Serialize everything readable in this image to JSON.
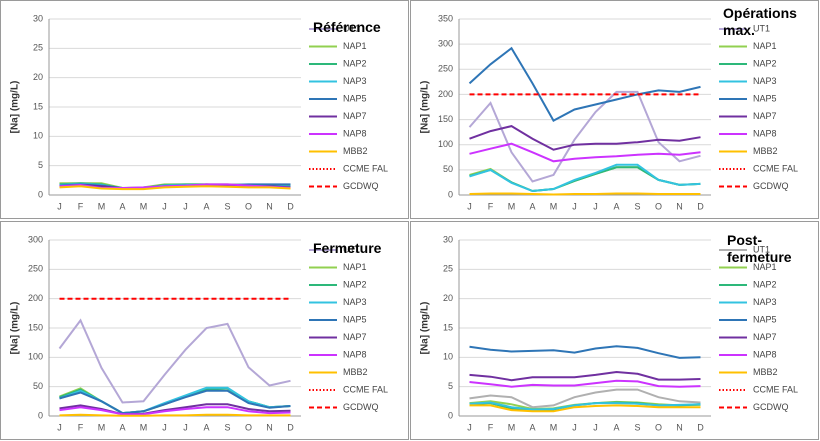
{
  "chart_data": [
    {
      "type": "line",
      "title": "Référence",
      "y_label": "[Na] (mg/L)",
      "categories": [
        "J",
        "F",
        "M",
        "A",
        "M",
        "J",
        "J",
        "A",
        "S",
        "O",
        "N",
        "D"
      ],
      "ylim": [
        0,
        30
      ],
      "yticks": [
        0,
        5,
        10,
        15,
        20,
        25,
        30
      ],
      "grid": true,
      "series": [
        {
          "name": "UT1",
          "color": "#b4a7d6",
          "style": "solid",
          "values": [
            1.5,
            1.8,
            1.5,
            1.2,
            1.2,
            1.5,
            1.6,
            1.8,
            1.6,
            1.5,
            1.5,
            1.3
          ]
        },
        {
          "name": "NAP1",
          "color": "#92d050",
          "style": "solid",
          "values": [
            2,
            2,
            2,
            1.2,
            1.3,
            1.8,
            1.8,
            1.8,
            1.8,
            1.7,
            1.6,
            1.5
          ]
        },
        {
          "name": "NAP2",
          "color": "#2db87a",
          "style": "solid",
          "values": [
            1.8,
            2,
            1.8,
            1.1,
            1.2,
            1.7,
            1.8,
            1.8,
            1.7,
            1.6,
            1.6,
            1.5
          ]
        },
        {
          "name": "NAP3",
          "color": "#33c3e0",
          "style": "solid",
          "values": [
            1.7,
            1.9,
            1.7,
            1.1,
            1.1,
            1.6,
            1.7,
            1.7,
            1.6,
            1.6,
            1.5,
            1.4
          ]
        },
        {
          "name": "NAP5",
          "color": "#2e75b6",
          "style": "solid",
          "values": [
            1.6,
            1.8,
            1.6,
            1.2,
            1.2,
            1.5,
            1.6,
            1.7,
            1.7,
            1.8,
            1.8,
            1.8
          ]
        },
        {
          "name": "NAP7",
          "color": "#7030a0",
          "style": "solid",
          "values": [
            1.4,
            1.7,
            1.5,
            1.1,
            1.1,
            1.4,
            1.5,
            1.6,
            1.6,
            1.5,
            1.5,
            1.3
          ]
        },
        {
          "name": "NAP8",
          "color": "#cc33ff",
          "style": "solid",
          "values": [
            1.5,
            1.7,
            1.2,
            1.2,
            1.3,
            1.5,
            1.6,
            1.8,
            1.8,
            1.6,
            1.4,
            1.2
          ]
        },
        {
          "name": "MBB2",
          "color": "#ffc000",
          "style": "solid",
          "values": [
            1.3,
            1.5,
            1.1,
            1.0,
            1.0,
            1.3,
            1.4,
            1.5,
            1.4,
            1.3,
            1.3,
            1.1
          ]
        },
        {
          "name": "CCME FAL",
          "color": "#ff0000",
          "style": "dotted",
          "values": [
            null,
            null,
            null,
            null,
            null,
            null,
            null,
            null,
            null,
            null,
            null,
            null
          ]
        },
        {
          "name": "GCDWQ",
          "color": "#ff0000",
          "style": "dashed",
          "values": [
            null,
            null,
            null,
            null,
            null,
            null,
            null,
            null,
            null,
            null,
            null,
            null
          ]
        }
      ]
    },
    {
      "type": "line",
      "title": "Opérations max.",
      "y_label": "[Na] (mg/L)",
      "categories": [
        "J",
        "F",
        "M",
        "A",
        "M",
        "J",
        "J",
        "A",
        "S",
        "O",
        "N",
        "D"
      ],
      "ylim": [
        0,
        350
      ],
      "yticks": [
        0,
        50,
        100,
        150,
        200,
        250,
        300,
        350
      ],
      "grid": true,
      "series": [
        {
          "name": "UT1",
          "color": "#b4a7d6",
          "style": "solid",
          "values": [
            135,
            183,
            85,
            27,
            40,
            110,
            165,
            205,
            205,
            105,
            67,
            78
          ]
        },
        {
          "name": "NAP1",
          "color": "#92d050",
          "style": "solid",
          "values": [
            40,
            52,
            25,
            8,
            12,
            28,
            42,
            55,
            55,
            30,
            20,
            22
          ]
        },
        {
          "name": "NAP2",
          "color": "#2db87a",
          "style": "solid",
          "values": [
            38,
            50,
            25,
            8,
            12,
            28,
            42,
            55,
            55,
            30,
            20,
            22
          ]
        },
        {
          "name": "NAP3",
          "color": "#33c3e0",
          "style": "solid",
          "values": [
            37,
            50,
            24,
            8,
            12,
            30,
            44,
            60,
            60,
            30,
            20,
            22
          ]
        },
        {
          "name": "NAP5",
          "color": "#2e75b6",
          "style": "solid",
          "values": [
            222,
            260,
            292,
            222,
            148,
            170,
            180,
            190,
            200,
            208,
            205,
            215
          ]
        },
        {
          "name": "NAP7",
          "color": "#7030a0",
          "style": "solid",
          "values": [
            112,
            127,
            137,
            112,
            90,
            100,
            102,
            102,
            105,
            110,
            108,
            115
          ]
        },
        {
          "name": "NAP8",
          "color": "#cc33ff",
          "style": "solid",
          "values": [
            82,
            92,
            102,
            85,
            67,
            72,
            75,
            77,
            80,
            82,
            80,
            85
          ]
        },
        {
          "name": "MBB2",
          "color": "#ffc000",
          "style": "solid",
          "values": [
            2,
            3,
            3,
            2,
            1,
            2,
            2,
            3,
            3,
            2,
            2,
            2
          ]
        },
        {
          "name": "CCME FAL",
          "color": "#ff0000",
          "style": "dotted",
          "values": [
            null,
            null,
            null,
            null,
            null,
            null,
            null,
            null,
            null,
            null,
            null,
            null
          ]
        },
        {
          "name": "GCDWQ",
          "color": "#ff0000",
          "style": "dashed",
          "values": [
            200,
            200,
            200,
            200,
            200,
            200,
            200,
            200,
            200,
            200,
            200,
            200
          ]
        }
      ]
    },
    {
      "type": "line",
      "title": "Fermeture",
      "y_label": "[Na] (mg/L)",
      "categories": [
        "J",
        "F",
        "M",
        "A",
        "M",
        "J",
        "J",
        "A",
        "S",
        "O",
        "N",
        "D"
      ],
      "ylim": [
        0,
        300
      ],
      "yticks": [
        0,
        50,
        100,
        150,
        200,
        250,
        300
      ],
      "grid": true,
      "series": [
        {
          "name": "UT1",
          "color": "#b4a7d6",
          "style": "solid",
          "values": [
            115,
            163,
            82,
            23,
            25,
            70,
            113,
            150,
            157,
            83,
            52,
            60
          ]
        },
        {
          "name": "NAP1",
          "color": "#92d050",
          "style": "solid",
          "values": [
            33,
            47,
            25,
            5,
            8,
            20,
            33,
            45,
            47,
            25,
            15,
            17
          ]
        },
        {
          "name": "NAP2",
          "color": "#2db87a",
          "style": "solid",
          "values": [
            32,
            45,
            25,
            5,
            8,
            20,
            33,
            45,
            47,
            25,
            15,
            17
          ]
        },
        {
          "name": "NAP3",
          "color": "#33c3e0",
          "style": "solid",
          "values": [
            30,
            43,
            25,
            5,
            8,
            22,
            35,
            48,
            48,
            25,
            15,
            17
          ]
        },
        {
          "name": "NAP5",
          "color": "#2e75b6",
          "style": "solid",
          "values": [
            30,
            40,
            25,
            5,
            8,
            20,
            32,
            43,
            43,
            22,
            14,
            17
          ]
        },
        {
          "name": "NAP7",
          "color": "#7030a0",
          "style": "solid",
          "values": [
            13,
            18,
            12,
            3,
            4,
            10,
            15,
            20,
            20,
            12,
            8,
            9
          ]
        },
        {
          "name": "NAP8",
          "color": "#cc33ff",
          "style": "solid",
          "values": [
            10,
            15,
            10,
            3,
            3,
            8,
            12,
            15,
            15,
            8,
            5,
            6
          ]
        },
        {
          "name": "MBB2",
          "color": "#ffc000",
          "style": "solid",
          "values": [
            1,
            2,
            1,
            0.5,
            0.5,
            1,
            1,
            2,
            2,
            1,
            1,
            1
          ]
        },
        {
          "name": "CCME FAL",
          "color": "#ff0000",
          "style": "dotted",
          "values": [
            null,
            null,
            null,
            null,
            null,
            null,
            null,
            null,
            null,
            null,
            null,
            null
          ]
        },
        {
          "name": "GCDWQ",
          "color": "#ff0000",
          "style": "dashed",
          "values": [
            200,
            200,
            200,
            200,
            200,
            200,
            200,
            200,
            200,
            200,
            200,
            200
          ]
        }
      ]
    },
    {
      "type": "line",
      "title": "Post-fermeture",
      "y_label": "[Na] (mg/L)",
      "categories": [
        "J",
        "F",
        "M",
        "A",
        "M",
        "J",
        "J",
        "A",
        "S",
        "O",
        "N",
        "D"
      ],
      "ylim": [
        0,
        30
      ],
      "yticks": [
        0,
        5,
        10,
        15,
        20,
        25,
        30
      ],
      "grid": true,
      "series": [
        {
          "name": "UT1",
          "color": "#b0b0b0",
          "style": "solid",
          "values": [
            3.0,
            3.5,
            3.2,
            1.5,
            1.8,
            3.2,
            4,
            4.5,
            4.5,
            3.2,
            2.5,
            2.3
          ]
        },
        {
          "name": "NAP1",
          "color": "#92d050",
          "style": "solid",
          "values": [
            2.2,
            2.5,
            2,
            1.2,
            1.3,
            1.9,
            2.2,
            2.4,
            2.3,
            2.0,
            1.8,
            1.9
          ]
        },
        {
          "name": "NAP2",
          "color": "#2db87a",
          "style": "solid",
          "values": [
            2.0,
            2.2,
            1.3,
            1.0,
            1.1,
            1.8,
            2.2,
            2.3,
            2.2,
            1.8,
            1.8,
            2.0
          ]
        },
        {
          "name": "NAP3",
          "color": "#33c3e0",
          "style": "solid",
          "values": [
            2.1,
            2.3,
            1.5,
            1.1,
            1.2,
            1.8,
            2.2,
            2.2,
            2.1,
            1.8,
            1.9,
            2.0
          ]
        },
        {
          "name": "NAP5",
          "color": "#2e75b6",
          "style": "solid",
          "values": [
            11.8,
            11.3,
            11,
            11.1,
            11.2,
            10.8,
            11.5,
            11.9,
            11.6,
            10.7,
            9.9,
            10
          ]
        },
        {
          "name": "NAP7",
          "color": "#7030a0",
          "style": "solid",
          "values": [
            7,
            6.7,
            6.1,
            6.6,
            6.6,
            6.6,
            7.0,
            7.5,
            7.2,
            6.2,
            6.2,
            6.3
          ]
        },
        {
          "name": "NAP8",
          "color": "#cc33ff",
          "style": "solid",
          "values": [
            5.8,
            5.4,
            5.0,
            5.3,
            5.2,
            5.2,
            5.6,
            6.0,
            5.9,
            5.1,
            5.0,
            5.1
          ]
        },
        {
          "name": "MBB2",
          "color": "#ffc000",
          "style": "solid",
          "values": [
            1.8,
            1.8,
            1.0,
            0.8,
            0.8,
            1.5,
            1.7,
            1.8,
            1.7,
            1.5,
            1.5,
            1.5
          ]
        },
        {
          "name": "CCME FAL",
          "color": "#ff0000",
          "style": "dotted",
          "values": [
            null,
            null,
            null,
            null,
            null,
            null,
            null,
            null,
            null,
            null,
            null,
            null
          ]
        },
        {
          "name": "GCDWQ",
          "color": "#ff0000",
          "style": "dashed",
          "values": [
            null,
            null,
            null,
            null,
            null,
            null,
            null,
            null,
            null,
            null,
            null,
            null
          ]
        }
      ]
    }
  ]
}
